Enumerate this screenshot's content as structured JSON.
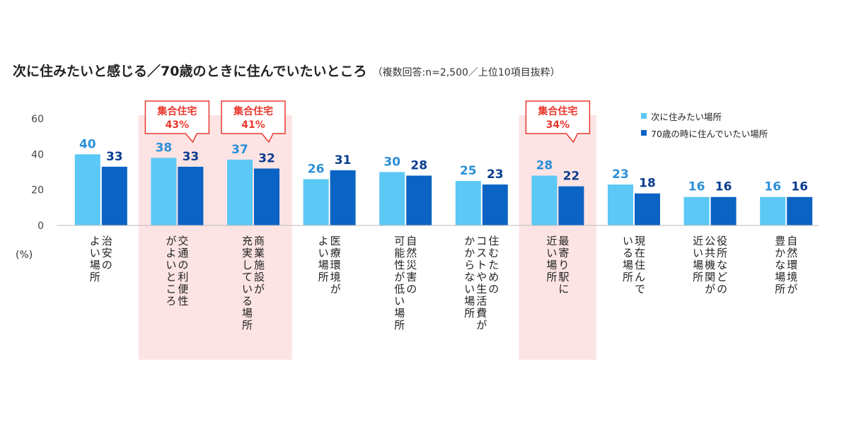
{
  "title": "次に住みたいと感じる／70歳のときに住んでいたいところ",
  "subtitle": "（複数回答:n=2,500／上位10項目抜粋）",
  "chart_data": {
    "type": "bar",
    "unit_label": "(%)",
    "ylim": [
      0,
      60
    ],
    "yticks": [
      0,
      20,
      40,
      60
    ],
    "grid": false,
    "legend_position": "top-right",
    "categories": [
      "治安の\nよい場所",
      "交通の利便性\nがよいところ",
      "商業施設が\n充実している場所",
      "医療環境が\nよい場所",
      "自然災害の\n可能性が低い場所",
      "住むための\nコストや生活費が\nかからない場所",
      "最寄り駅に\n近い場所",
      "現在住んで\nいる場所",
      "役所などの\n公共機関が\n近い場所",
      "自然環境が\n豊かな場所"
    ],
    "series": [
      {
        "name": "次に住みたい場所",
        "color": "#5bc8f5",
        "label_color": "#2b8fd8",
        "values": [
          40,
          38,
          37,
          26,
          30,
          25,
          28,
          23,
          16,
          16
        ]
      },
      {
        "name": "70歳の時に住んでいたい場所",
        "color": "#0b63c4",
        "label_color": "#0a3d8f",
        "values": [
          33,
          33,
          32,
          31,
          28,
          23,
          22,
          18,
          16,
          16
        ]
      }
    ],
    "highlight_indices": [
      1,
      2,
      6
    ],
    "highlight_color": "#fde4e4",
    "annotations": [
      {
        "index": 1,
        "lines": [
          "集合住宅",
          "43%"
        ]
      },
      {
        "index": 2,
        "lines": [
          "集合住宅",
          "41%"
        ]
      },
      {
        "index": 6,
        "lines": [
          "集合住宅",
          "34%"
        ]
      }
    ],
    "annotation_color": "#e8382e"
  }
}
